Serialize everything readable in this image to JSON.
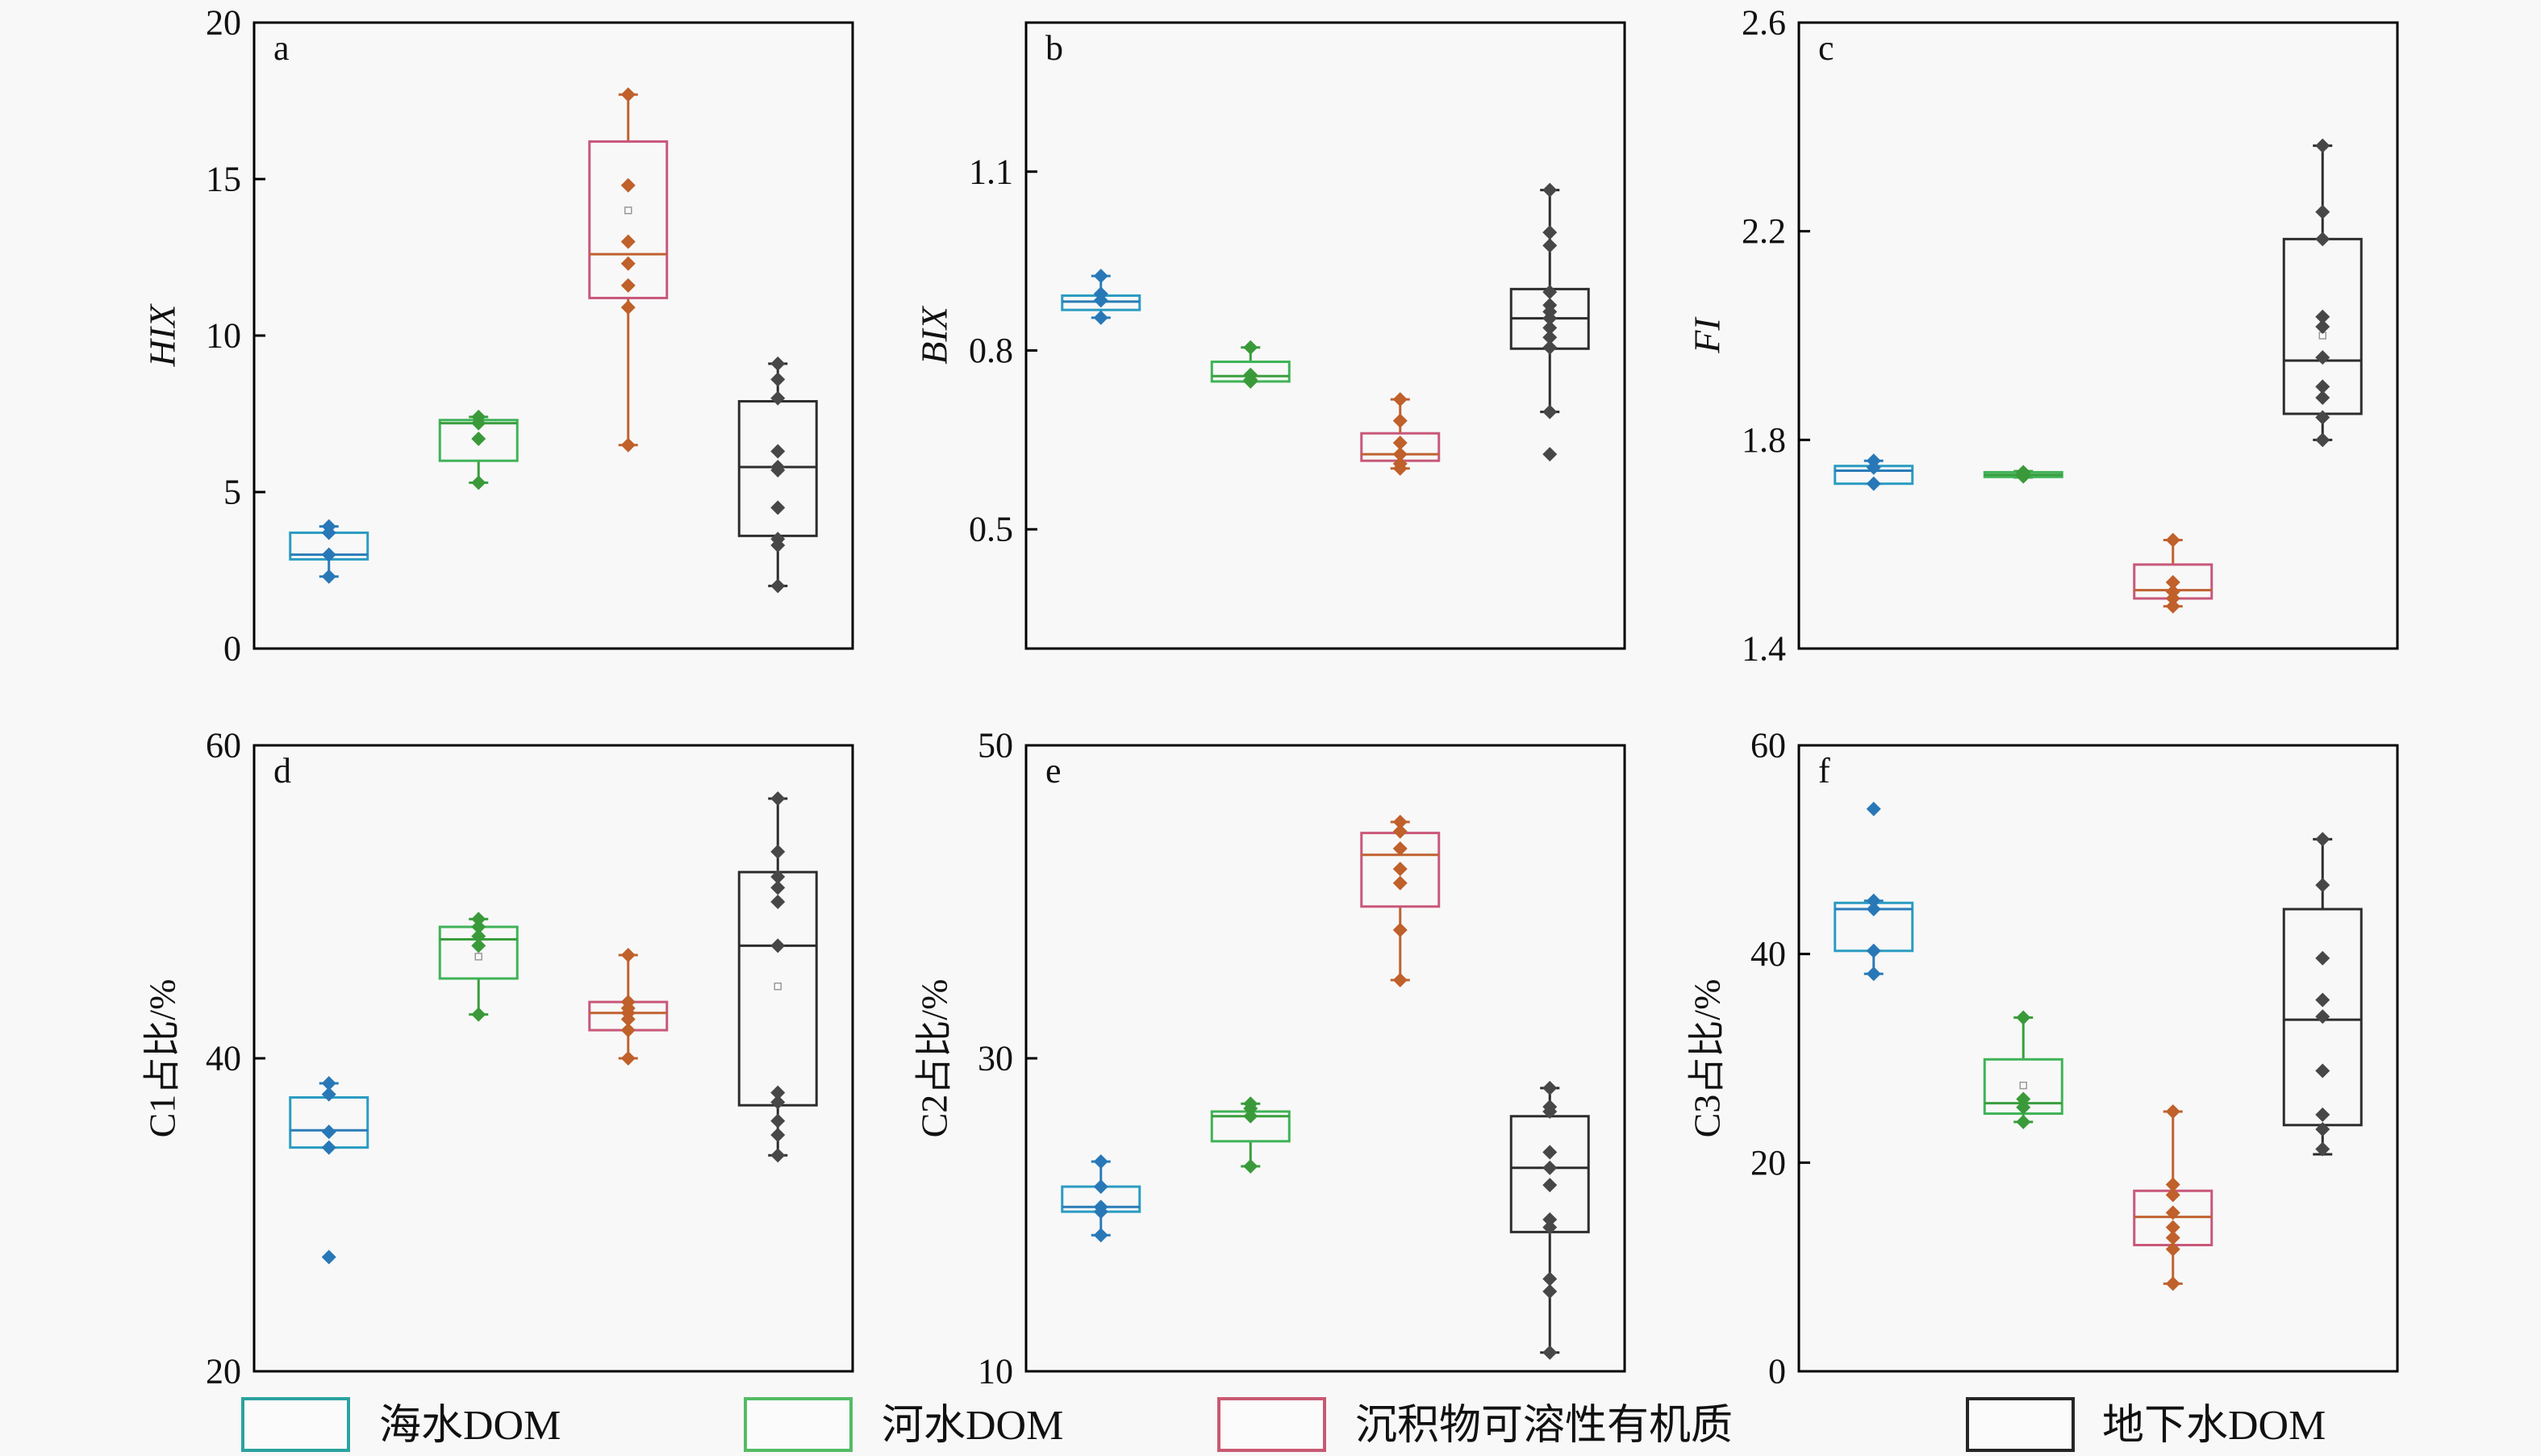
{
  "styles": {
    "background": "#f8f8f8",
    "series_styles": [
      {
        "box": "#2b9cc2",
        "line": "#2a7cb8",
        "point": "#2878b8"
      },
      {
        "box": "#3fb357",
        "line": "#3a9e3e",
        "point": "#3a9a3a"
      },
      {
        "box": "#c9577a",
        "line": "#c06230",
        "point": "#c0602a"
      },
      {
        "box": "#2d2d2d",
        "line": "#2d2d2d",
        "point": "#474747"
      }
    ],
    "mean_marker_color": "#9a9a9a"
  },
  "legend": {
    "items": [
      {
        "label": "海水DOM",
        "color": "#2aa3a0"
      },
      {
        "label": "河水DOM",
        "color": "#55bb66"
      },
      {
        "label": "沉积物可溶性有机质",
        "color": "#c85a72"
      },
      {
        "label": "地下水DOM",
        "color": "#262626"
      }
    ]
  },
  "chart_data": [
    {
      "type": "box",
      "panel_label": "a",
      "ylabel": "HIX",
      "ylim": [
        0,
        20
      ],
      "yticks": [
        0,
        5,
        10,
        15,
        20
      ],
      "ytick_labels": [
        "0",
        "5",
        "10",
        "15",
        "20"
      ],
      "series": [
        {
          "q1": 2.85,
          "median": 3.0,
          "q3": 3.7,
          "whisker_low": 2.3,
          "whisker_high": 3.9,
          "points": [
            3.9,
            3.7,
            3.0,
            2.3
          ]
        },
        {
          "q1": 6.0,
          "median": 7.2,
          "q3": 7.3,
          "whisker_low": 5.3,
          "whisker_high": 7.4,
          "points": [
            7.4,
            7.2,
            6.7,
            5.3
          ]
        },
        {
          "q1": 11.2,
          "median": 12.6,
          "q3": 16.2,
          "whisker_low": 6.5,
          "whisker_high": 17.7,
          "mean": 14.0,
          "points": [
            17.7,
            14.8,
            13.0,
            12.3,
            11.6,
            10.9,
            6.5
          ]
        },
        {
          "q1": 3.6,
          "median": 5.8,
          "q3": 7.9,
          "whisker_low": 2.0,
          "whisker_high": 9.1,
          "points": [
            9.1,
            8.6,
            8.0,
            6.3,
            5.8,
            5.7,
            4.5,
            3.5,
            3.3,
            2.0
          ]
        }
      ]
    },
    {
      "type": "box",
      "panel_label": "b",
      "ylabel": "BIX",
      "ylim": [
        0.3,
        1.35
      ],
      "yticks": [
        0.5,
        0.8,
        1.1
      ],
      "ytick_labels": [
        "0.5",
        "0.8",
        "1.1"
      ],
      "series": [
        {
          "q1": 0.868,
          "median": 0.882,
          "q3": 0.892,
          "whisker_low": 0.855,
          "whisker_high": 0.925,
          "points": [
            0.925,
            0.895,
            0.884,
            0.855
          ]
        },
        {
          "q1": 0.748,
          "median": 0.757,
          "q3": 0.781,
          "whisker_low": 0.748,
          "whisker_high": 0.805,
          "points": [
            0.805,
            0.759,
            0.751,
            0.748
          ]
        },
        {
          "q1": 0.615,
          "median": 0.626,
          "q3": 0.661,
          "whisker_low": 0.602,
          "whisker_high": 0.718,
          "points": [
            0.718,
            0.682,
            0.645,
            0.626,
            0.61,
            0.602
          ]
        },
        {
          "q1": 0.803,
          "median": 0.854,
          "q3": 0.903,
          "whisker_low": 0.697,
          "whisker_high": 1.069,
          "points": [
            1.069,
            0.998,
            0.976,
            0.898,
            0.876,
            0.865,
            0.854,
            0.838,
            0.822,
            0.805,
            0.697,
            0.626
          ]
        }
      ]
    },
    {
      "type": "box",
      "panel_label": "c",
      "ylabel": "FI",
      "ylim": [
        1.4,
        2.6
      ],
      "yticks": [
        1.4,
        1.8,
        2.2,
        2.6
      ],
      "ytick_labels": [
        "1.4",
        "1.8",
        "2.2",
        "2.6"
      ],
      "series": [
        {
          "q1": 1.716,
          "median": 1.741,
          "q3": 1.75,
          "whisker_low": 1.716,
          "whisker_high": 1.76,
          "points": [
            1.76,
            1.747,
            1.716
          ]
        },
        {
          "q1": 1.729,
          "median": 1.733,
          "q3": 1.738,
          "whisker_low": 1.728,
          "whisker_high": 1.74,
          "points": [
            1.738,
            1.735,
            1.733,
            1.73
          ]
        },
        {
          "q1": 1.496,
          "median": 1.512,
          "q3": 1.561,
          "whisker_low": 1.481,
          "whisker_high": 1.608,
          "points": [
            1.608,
            1.527,
            1.509,
            1.496,
            1.481
          ]
        },
        {
          "q1": 1.85,
          "median": 1.952,
          "q3": 2.185,
          "whisker_low": 1.8,
          "whisker_high": 2.364,
          "mean": 2.0,
          "points": [
            2.364,
            2.237,
            2.185,
            2.036,
            2.017,
            1.958,
            1.902,
            1.881,
            1.843,
            1.8
          ]
        }
      ]
    },
    {
      "type": "box",
      "panel_label": "d",
      "ylabel": "C1占比/%",
      "ylim": [
        20,
        60
      ],
      "yticks": [
        20,
        40,
        60
      ],
      "ytick_labels": [
        "20",
        "40",
        "60"
      ],
      "series": [
        {
          "q1": 34.3,
          "median": 35.4,
          "q3": 37.5,
          "whisker_low": 34.3,
          "whisker_high": 38.4,
          "points": [
            38.4,
            37.7,
            35.3,
            34.3,
            27.3
          ]
        },
        {
          "q1": 45.1,
          "median": 47.6,
          "q3": 48.4,
          "whisker_low": 42.8,
          "whisker_high": 48.9,
          "mean": 46.5,
          "points": [
            48.9,
            48.4,
            47.8,
            47.2,
            42.8
          ]
        },
        {
          "q1": 41.8,
          "median": 42.9,
          "q3": 43.6,
          "whisker_low": 40.0,
          "whisker_high": 46.6,
          "points": [
            46.6,
            43.6,
            43.2,
            42.9,
            42.5,
            41.8,
            40.0
          ]
        },
        {
          "q1": 37.0,
          "median": 47.2,
          "q3": 51.9,
          "whisker_low": 33.8,
          "whisker_high": 56.6,
          "mean": 44.6,
          "points": [
            56.6,
            53.2,
            51.6,
            50.9,
            50.0,
            47.2,
            37.8,
            37.2,
            36.0,
            35.1,
            33.8
          ]
        }
      ]
    },
    {
      "type": "box",
      "panel_label": "e",
      "ylabel": "C2占比/%",
      "ylim": [
        10,
        50
      ],
      "yticks": [
        10,
        30,
        50
      ],
      "ytick_labels": [
        "10",
        "30",
        "50"
      ],
      "series": [
        {
          "q1": 20.2,
          "median": 20.5,
          "q3": 21.8,
          "whisker_low": 18.7,
          "whisker_high": 23.4,
          "points": [
            23.4,
            21.8,
            20.5,
            20.2,
            18.7
          ]
        },
        {
          "q1": 24.7,
          "median": 26.3,
          "q3": 26.6,
          "whisker_low": 23.1,
          "whisker_high": 27.1,
          "points": [
            27.1,
            26.8,
            26.3,
            23.1
          ]
        },
        {
          "q1": 39.7,
          "median": 43.0,
          "q3": 44.4,
          "whisker_low": 35.0,
          "whisker_high": 45.1,
          "points": [
            45.1,
            44.5,
            43.4,
            42.1,
            41.2,
            38.2,
            35.0
          ]
        },
        {
          "q1": 18.9,
          "median": 23.0,
          "q3": 26.3,
          "whisker_low": 11.2,
          "whisker_high": 28.1,
          "points": [
            28.1,
            26.9,
            26.6,
            24.0,
            23.0,
            21.9,
            19.7,
            19.2,
            15.9,
            15.1,
            11.2
          ]
        }
      ]
    },
    {
      "type": "box",
      "panel_label": "f",
      "ylabel": "C3占比/%",
      "ylim": [
        0,
        60
      ],
      "yticks": [
        0,
        20,
        40,
        60
      ],
      "ytick_labels": [
        "0",
        "20",
        "40",
        "60"
      ],
      "series": [
        {
          "q1": 40.3,
          "median": 44.3,
          "q3": 44.9,
          "whisker_low": 38.1,
          "whisker_high": 45.1,
          "points": [
            53.9,
            45.1,
            44.3,
            40.3,
            38.1
          ]
        },
        {
          "q1": 24.7,
          "median": 25.7,
          "q3": 29.9,
          "whisker_low": 23.9,
          "whisker_high": 33.9,
          "mean": 27.4,
          "points": [
            33.9,
            26.1,
            25.3,
            23.9
          ]
        },
        {
          "q1": 12.1,
          "median": 14.8,
          "q3": 17.3,
          "whisker_low": 8.4,
          "whisker_high": 24.9,
          "points": [
            24.9,
            17.9,
            16.9,
            15.2,
            13.8,
            12.8,
            11.7,
            8.4
          ]
        },
        {
          "q1": 23.6,
          "median": 33.7,
          "q3": 44.3,
          "whisker_low": 20.8,
          "whisker_high": 51.0,
          "points": [
            51.0,
            46.6,
            39.6,
            35.6,
            34.0,
            28.8,
            24.6,
            23.2,
            21.3
          ]
        }
      ]
    }
  ]
}
